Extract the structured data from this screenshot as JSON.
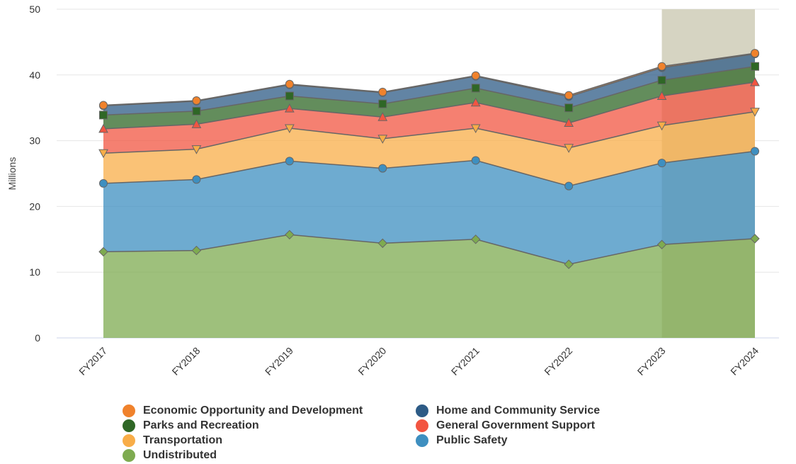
{
  "chart_data": {
    "type": "area",
    "stacked": true,
    "title": "",
    "xlabel": "",
    "ylabel": "Millions",
    "ylim": [
      0,
      50
    ],
    "yticks": [
      0,
      10,
      20,
      30,
      40,
      50
    ],
    "grid": true,
    "legend_position": "bottom",
    "highlight_categories": [
      "FY2023",
      "FY2024"
    ],
    "highlight_color": "#d6d4c2",
    "categories": [
      "FY2017",
      "FY2018",
      "FY2019",
      "FY2020",
      "FY2021",
      "FY2022",
      "FY2023",
      "FY2024"
    ],
    "series": [
      {
        "name": "Undistributed",
        "color": "#7eab50",
        "marker": "diamond",
        "values": [
          13.1,
          13.3,
          15.7,
          14.4,
          15.0,
          11.2,
          14.2,
          15.1
        ]
      },
      {
        "name": "Public Safety",
        "color": "#3e8fc0",
        "marker": "circle",
        "values": [
          10.4,
          10.8,
          11.2,
          11.4,
          12.0,
          11.9,
          12.4,
          13.3
        ]
      },
      {
        "name": "Transportation",
        "color": "#f8ad48",
        "marker": "triangle-down",
        "values": [
          4.6,
          4.6,
          5.0,
          4.5,
          4.9,
          5.8,
          5.7,
          6.0
        ]
      },
      {
        "name": "General Government Support",
        "color": "#f25541",
        "marker": "triangle-up",
        "values": [
          3.7,
          3.8,
          3.0,
          3.3,
          3.9,
          3.8,
          4.5,
          4.5
        ]
      },
      {
        "name": "Parks and Recreation",
        "color": "#2f6726",
        "marker": "square",
        "values": [
          2.1,
          2.0,
          1.9,
          2.0,
          2.2,
          2.3,
          2.4,
          2.4
        ]
      },
      {
        "name": "Home and Community Service",
        "color": "#2d5b86",
        "marker": "circle",
        "values": [
          1.4,
          1.5,
          1.7,
          1.7,
          1.8,
          1.7,
          1.9,
          1.9
        ]
      },
      {
        "name": "Economic Opportunity and Development",
        "color": "#f0822c",
        "marker": "circle",
        "values": [
          0.1,
          0.1,
          0.1,
          0.1,
          0.1,
          0.2,
          0.2,
          0.1
        ]
      }
    ],
    "legend": [
      {
        "name": "Economic Opportunity and Development",
        "color": "#f0822c"
      },
      {
        "name": "Home and Community Service",
        "color": "#2d5b86"
      },
      {
        "name": "Parks and Recreation",
        "color": "#2f6726"
      },
      {
        "name": "General Government Support",
        "color": "#f25541"
      },
      {
        "name": "Transportation",
        "color": "#f8ad48"
      },
      {
        "name": "Public Safety",
        "color": "#3e8fc0"
      },
      {
        "name": "Undistributed",
        "color": "#7eab50"
      }
    ]
  }
}
